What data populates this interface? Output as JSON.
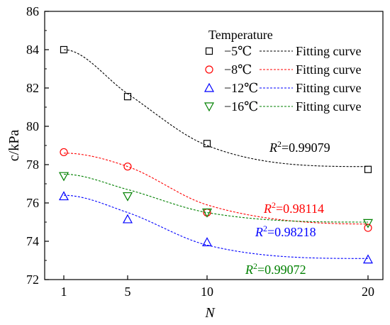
{
  "chart_data": {
    "type": "scatter",
    "xlabel": "N",
    "ylabel": "c/kPa",
    "x": [
      1,
      5,
      10,
      20
    ],
    "xticks": [
      1,
      5,
      10,
      20
    ],
    "yticks": [
      72,
      74,
      76,
      78,
      80,
      82,
      84,
      86
    ],
    "ylim": [
      72,
      86
    ],
    "grid": false,
    "legend": {
      "title": "Temperature",
      "placement": "top-right",
      "fit_label": "Fitting curve"
    },
    "series": [
      {
        "name": "−5℃",
        "color": "#000000",
        "marker": "square",
        "values": [
          84.0,
          81.55,
          79.1,
          77.75
        ],
        "fit": {
          "x": [
            1,
            5,
            10,
            20
          ],
          "y": [
            84.0,
            81.7,
            79.0,
            77.9
          ]
        },
        "r2_label": "=0.99079",
        "label_color": "#000000"
      },
      {
        "name": "−8℃",
        "color": "#ff0000",
        "marker": "circle",
        "values": [
          78.65,
          77.9,
          75.5,
          74.7
        ],
        "fit": {
          "x": [
            1,
            5,
            10,
            20
          ],
          "y": [
            78.6,
            77.9,
            75.9,
            74.9
          ]
        },
        "r2_label": "=0.98114",
        "label_color": "#ff0000"
      },
      {
        "name": "−12℃",
        "color": "#0000ff",
        "marker": "triangle-up",
        "values": [
          76.35,
          75.15,
          73.95,
          73.05
        ],
        "fit": {
          "x": [
            1,
            5,
            10,
            20
          ],
          "y": [
            76.4,
            75.5,
            73.8,
            73.1
          ]
        },
        "r2_label": "=0.98218",
        "label_color": "#0000ff"
      },
      {
        "name": "−16℃",
        "color": "#008000",
        "marker": "triangle-down",
        "values": [
          77.4,
          76.35,
          75.5,
          74.95
        ],
        "fit": {
          "x": [
            1,
            5,
            10,
            20
          ],
          "y": [
            77.5,
            76.7,
            75.5,
            75.0
          ]
        },
        "r2_label": "=0.99072",
        "label_color": "#008000"
      }
    ]
  }
}
